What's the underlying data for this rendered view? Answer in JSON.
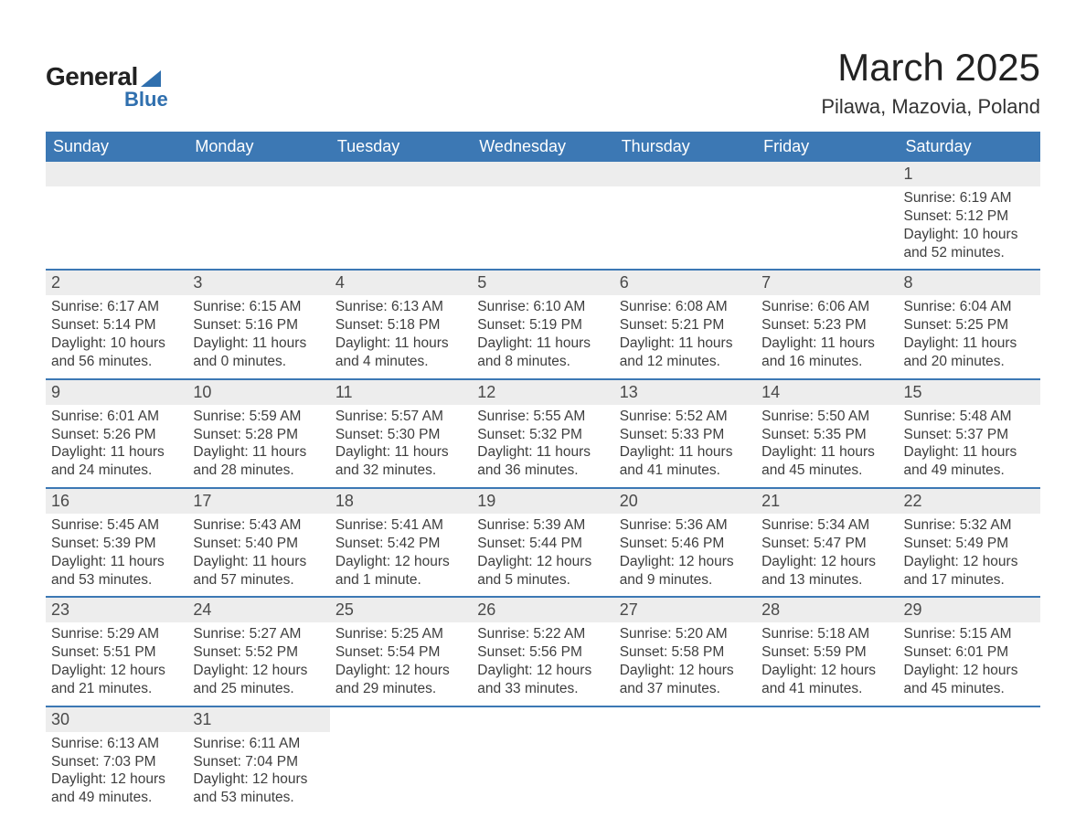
{
  "logo": {
    "word1": "General",
    "word2": "Blue"
  },
  "title": "March 2025",
  "subtitle": "Pilawa, Mazovia, Poland",
  "header_bg": "#3c78b4",
  "header_fg": "#ffffff",
  "daynum_bg": "#ededed",
  "row_border": "#3c78b4",
  "text_color": "#3e3e3e",
  "page_bg": "#ffffff",
  "font_family": "Arial, Helvetica, sans-serif",
  "columns": [
    "Sunday",
    "Monday",
    "Tuesday",
    "Wednesday",
    "Thursday",
    "Friday",
    "Saturday"
  ],
  "weeks": [
    [
      null,
      null,
      null,
      null,
      null,
      null,
      {
        "n": "1",
        "sr": "6:19 AM",
        "ss": "5:12 PM",
        "dl": "10 hours and 52 minutes."
      }
    ],
    [
      {
        "n": "2",
        "sr": "6:17 AM",
        "ss": "5:14 PM",
        "dl": "10 hours and 56 minutes."
      },
      {
        "n": "3",
        "sr": "6:15 AM",
        "ss": "5:16 PM",
        "dl": "11 hours and 0 minutes."
      },
      {
        "n": "4",
        "sr": "6:13 AM",
        "ss": "5:18 PM",
        "dl": "11 hours and 4 minutes."
      },
      {
        "n": "5",
        "sr": "6:10 AM",
        "ss": "5:19 PM",
        "dl": "11 hours and 8 minutes."
      },
      {
        "n": "6",
        "sr": "6:08 AM",
        "ss": "5:21 PM",
        "dl": "11 hours and 12 minutes."
      },
      {
        "n": "7",
        "sr": "6:06 AM",
        "ss": "5:23 PM",
        "dl": "11 hours and 16 minutes."
      },
      {
        "n": "8",
        "sr": "6:04 AM",
        "ss": "5:25 PM",
        "dl": "11 hours and 20 minutes."
      }
    ],
    [
      {
        "n": "9",
        "sr": "6:01 AM",
        "ss": "5:26 PM",
        "dl": "11 hours and 24 minutes."
      },
      {
        "n": "10",
        "sr": "5:59 AM",
        "ss": "5:28 PM",
        "dl": "11 hours and 28 minutes."
      },
      {
        "n": "11",
        "sr": "5:57 AM",
        "ss": "5:30 PM",
        "dl": "11 hours and 32 minutes."
      },
      {
        "n": "12",
        "sr": "5:55 AM",
        "ss": "5:32 PM",
        "dl": "11 hours and 36 minutes."
      },
      {
        "n": "13",
        "sr": "5:52 AM",
        "ss": "5:33 PM",
        "dl": "11 hours and 41 minutes."
      },
      {
        "n": "14",
        "sr": "5:50 AM",
        "ss": "5:35 PM",
        "dl": "11 hours and 45 minutes."
      },
      {
        "n": "15",
        "sr": "5:48 AM",
        "ss": "5:37 PM",
        "dl": "11 hours and 49 minutes."
      }
    ],
    [
      {
        "n": "16",
        "sr": "5:45 AM",
        "ss": "5:39 PM",
        "dl": "11 hours and 53 minutes."
      },
      {
        "n": "17",
        "sr": "5:43 AM",
        "ss": "5:40 PM",
        "dl": "11 hours and 57 minutes."
      },
      {
        "n": "18",
        "sr": "5:41 AM",
        "ss": "5:42 PM",
        "dl": "12 hours and 1 minute."
      },
      {
        "n": "19",
        "sr": "5:39 AM",
        "ss": "5:44 PM",
        "dl": "12 hours and 5 minutes."
      },
      {
        "n": "20",
        "sr": "5:36 AM",
        "ss": "5:46 PM",
        "dl": "12 hours and 9 minutes."
      },
      {
        "n": "21",
        "sr": "5:34 AM",
        "ss": "5:47 PM",
        "dl": "12 hours and 13 minutes."
      },
      {
        "n": "22",
        "sr": "5:32 AM",
        "ss": "5:49 PM",
        "dl": "12 hours and 17 minutes."
      }
    ],
    [
      {
        "n": "23",
        "sr": "5:29 AM",
        "ss": "5:51 PM",
        "dl": "12 hours and 21 minutes."
      },
      {
        "n": "24",
        "sr": "5:27 AM",
        "ss": "5:52 PM",
        "dl": "12 hours and 25 minutes."
      },
      {
        "n": "25",
        "sr": "5:25 AM",
        "ss": "5:54 PM",
        "dl": "12 hours and 29 minutes."
      },
      {
        "n": "26",
        "sr": "5:22 AM",
        "ss": "5:56 PM",
        "dl": "12 hours and 33 minutes."
      },
      {
        "n": "27",
        "sr": "5:20 AM",
        "ss": "5:58 PM",
        "dl": "12 hours and 37 minutes."
      },
      {
        "n": "28",
        "sr": "5:18 AM",
        "ss": "5:59 PM",
        "dl": "12 hours and 41 minutes."
      },
      {
        "n": "29",
        "sr": "5:15 AM",
        "ss": "6:01 PM",
        "dl": "12 hours and 45 minutes."
      }
    ],
    [
      {
        "n": "30",
        "sr": "6:13 AM",
        "ss": "7:03 PM",
        "dl": "12 hours and 49 minutes."
      },
      {
        "n": "31",
        "sr": "6:11 AM",
        "ss": "7:04 PM",
        "dl": "12 hours and 53 minutes."
      },
      null,
      null,
      null,
      null,
      null
    ]
  ],
  "labels": {
    "sunrise": "Sunrise:",
    "sunset": "Sunset:",
    "daylight": "Daylight:"
  }
}
